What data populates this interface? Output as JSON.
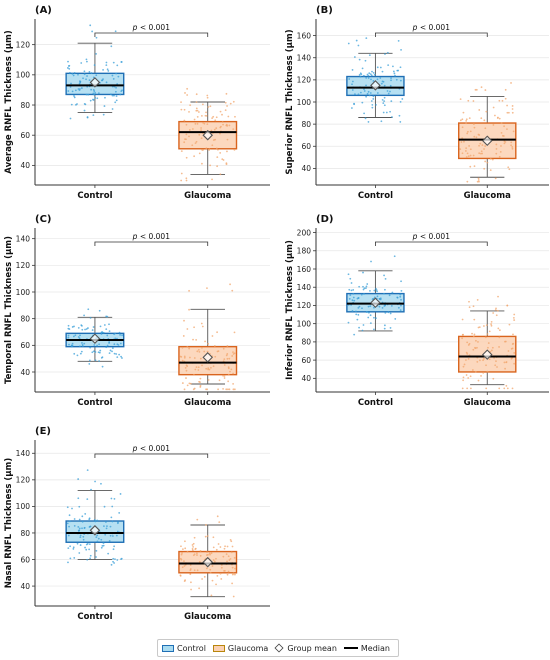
{
  "chart_data": [
    {
      "type": "box",
      "panel": "(A)",
      "ylabel": "Average RNFL Thickness (µm)",
      "categories": [
        "Control",
        "Glaucoma"
      ],
      "ylim": [
        27,
        137
      ],
      "yticks": [
        40,
        60,
        80,
        100,
        120
      ],
      "significance": {
        "prefix": "p",
        "text": " < 0.001"
      },
      "boxes": [
        {
          "name": "Control",
          "whisker_low": 75,
          "q1": 87,
          "median": 93,
          "q3": 101,
          "whisker_high": 121,
          "mean": 95
        },
        {
          "name": "Glaucoma",
          "whisker_low": 34,
          "q1": 51,
          "median": 62,
          "q3": 69,
          "whisker_high": 82,
          "mean": 60
        }
      ]
    },
    {
      "type": "box",
      "panel": "(B)",
      "ylabel": "Superior RNFL Thickness (µm)",
      "categories": [
        "Control",
        "Glaucoma"
      ],
      "ylim": [
        25,
        175
      ],
      "yticks": [
        40,
        60,
        80,
        100,
        120,
        140,
        160
      ],
      "significance": {
        "prefix": "p",
        "text": " < 0.001"
      },
      "boxes": [
        {
          "name": "Control",
          "whisker_low": 86,
          "q1": 106,
          "median": 113,
          "q3": 123,
          "whisker_high": 144,
          "mean": 115
        },
        {
          "name": "Glaucoma",
          "whisker_low": 32,
          "q1": 49,
          "median": 66,
          "q3": 81,
          "whisker_high": 105,
          "mean": 65
        }
      ]
    },
    {
      "type": "box",
      "panel": "(C)",
      "ylabel": "Temporal RNFL Thickness (µm)",
      "categories": [
        "Control",
        "Glaucoma"
      ],
      "ylim": [
        25,
        148
      ],
      "yticks": [
        40,
        60,
        80,
        100,
        120,
        140
      ],
      "significance": {
        "prefix": "p",
        "text": " < 0.001"
      },
      "boxes": [
        {
          "name": "Control",
          "whisker_low": 48,
          "q1": 59,
          "median": 64,
          "q3": 69,
          "whisker_high": 81,
          "mean": 65
        },
        {
          "name": "Glaucoma",
          "whisker_low": 31,
          "q1": 38,
          "median": 47,
          "q3": 59,
          "whisker_high": 87,
          "mean": 51
        }
      ]
    },
    {
      "type": "box",
      "panel": "(D)",
      "ylabel": "Inferior RNFL Thickness (µm)",
      "categories": [
        "Control",
        "Glaucoma"
      ],
      "ylim": [
        25,
        205
      ],
      "yticks": [
        40,
        60,
        80,
        100,
        120,
        140,
        160,
        180,
        200
      ],
      "significance": {
        "prefix": "p",
        "text": " < 0.001"
      },
      "boxes": [
        {
          "name": "Control",
          "whisker_low": 92,
          "q1": 113,
          "median": 122,
          "q3": 133,
          "whisker_high": 158,
          "mean": 123
        },
        {
          "name": "Glaucoma",
          "whisker_low": 33,
          "q1": 47,
          "median": 64,
          "q3": 86,
          "whisker_high": 114,
          "mean": 66
        }
      ]
    },
    {
      "type": "box",
      "panel": "(E)",
      "ylabel": "Nasal RNFL Thickness (µm)",
      "categories": [
        "Control",
        "Glaucoma"
      ],
      "ylim": [
        25,
        150
      ],
      "yticks": [
        40,
        60,
        80,
        100,
        120,
        140
      ],
      "significance": {
        "prefix": "p",
        "text": " < 0.001"
      },
      "boxes": [
        {
          "name": "Control",
          "whisker_low": 60,
          "q1": 73,
          "median": 80,
          "q3": 89,
          "whisker_high": 112,
          "mean": 82
        },
        {
          "name": "Glaucoma",
          "whisker_low": 32,
          "q1": 50,
          "median": 57,
          "q3": 66,
          "whisker_high": 86,
          "mean": 58
        }
      ]
    }
  ],
  "legend": {
    "control": "Control",
    "glaucoma": "Glaucoma",
    "mean": "Group mean",
    "median": "Median"
  },
  "colors": {
    "control_fill": "#a9dbf0",
    "control_edge": "#1f6fb5",
    "control_points": "#3a9fd8",
    "glaucoma_fill": "#fbd1b3",
    "glaucoma_edge": "#d9641e",
    "glaucoma_points": "#f2a66c",
    "whisker": "#555555",
    "median": "#000000"
  }
}
